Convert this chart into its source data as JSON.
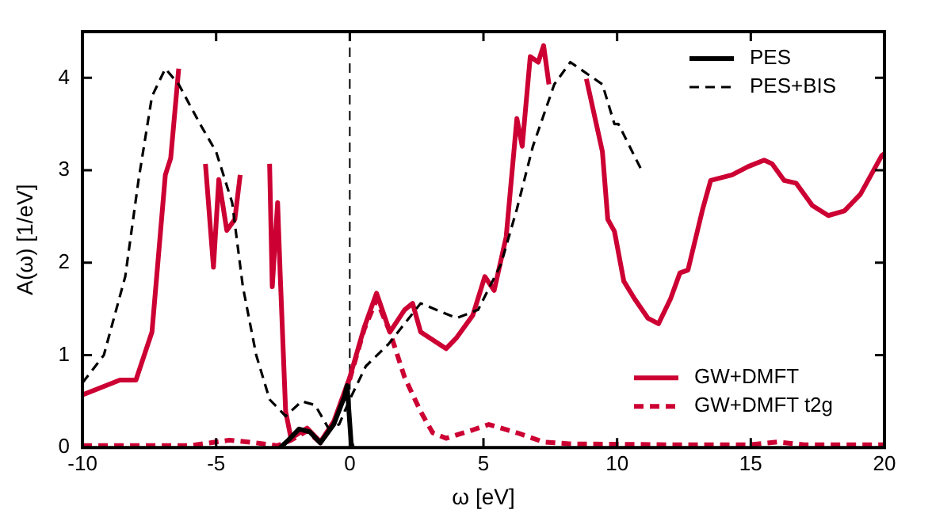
{
  "chart_data": {
    "type": "line",
    "xlabel": "ω [eV]",
    "ylabel": "A(ω) [1/eV]",
    "xlim": [
      -10,
      20
    ],
    "ylim": [
      0,
      4.5
    ],
    "xticks": [
      -10,
      -5,
      0,
      5,
      10,
      15,
      20
    ],
    "yticks": [
      0,
      1,
      2,
      3,
      4
    ],
    "legend": "right",
    "marker": "none",
    "ref_lines": [
      {
        "axis": "x",
        "value": 0,
        "color": "#000000",
        "line_style": "dashed"
      }
    ],
    "series": [
      {
        "name": "PES",
        "color": "#000000",
        "line_style": "solid",
        "x": [
          -2.6,
          -2.3,
          -1.9,
          -1.5,
          -1.1,
          -0.6,
          -0.2,
          -0.1,
          0.05,
          0.1
        ],
        "values": [
          0,
          0.08,
          0.2,
          0.17,
          0.05,
          0.25,
          0.55,
          0.67,
          0.05,
          0
        ]
      },
      {
        "name": "PES+BIS",
        "color": "#000000",
        "line_style": "dashed",
        "x": [
          -10,
          -9.2,
          -8.4,
          -7.9,
          -7.4,
          -6.9,
          -6.4,
          -5.6,
          -5.0,
          -4.4,
          -4.0,
          -3.5,
          -3.0,
          -2.4,
          -1.8,
          -1.3,
          -0.8,
          -0.4,
          0,
          0.6,
          1.45,
          2.65,
          4.0,
          4.8,
          5.65,
          6.25,
          6.85,
          7.65,
          8.25,
          9.45,
          9.9,
          10.05,
          10.95
        ],
        "values": [
          0.7,
          1.0,
          1.85,
          2.9,
          3.8,
          4.1,
          3.93,
          3.5,
          3.2,
          2.65,
          1.74,
          1.0,
          0.52,
          0.34,
          0.5,
          0.46,
          0.21,
          0.25,
          0.52,
          0.88,
          1.12,
          1.56,
          1.4,
          1.49,
          1.98,
          2.58,
          3.26,
          3.93,
          4.17,
          3.93,
          3.5,
          3.5,
          2.98
        ]
      },
      {
        "name": "GW+DMFT",
        "color": "#cc0033",
        "line_style": "solid",
        "x": [
          -10,
          -8.6,
          -8.0,
          -7.4,
          -6.9,
          -6.7,
          -6.4,
          -6.1,
          -5.6,
          -5.4,
          -5.1,
          -4.9,
          -4.6,
          -4.3,
          -4.1,
          -3.9,
          -3.5,
          -3.3,
          -3.1,
          -3.0,
          -2.9,
          -2.7,
          -2.6,
          -2.4,
          -2.2,
          -1.6,
          -1.1,
          -0.6,
          0,
          0.54,
          1.0,
          1.5,
          2.05,
          2.35,
          2.65,
          3.6,
          4.0,
          4.6,
          5.05,
          5.4,
          5.85,
          6.25,
          6.45,
          6.75,
          7.05,
          7.25,
          7.45,
          7.8,
          8.55,
          8.85,
          9.45,
          9.65,
          9.9,
          10.25,
          10.65,
          11.15,
          11.55,
          12.0,
          12.35,
          12.65,
          13.2,
          13.5,
          14.3,
          14.9,
          15.5,
          15.8,
          16.25,
          16.7,
          17.3,
          17.9,
          18.5,
          19.1,
          19.9,
          20
        ],
        "values": [
          0.57,
          0.73,
          0.73,
          1.25,
          2.95,
          3.13,
          4.1,
          null,
          null,
          3.07,
          1.95,
          2.9,
          2.35,
          2.47,
          2.95,
          null,
          null,
          null,
          null,
          3.07,
          1.74,
          2.65,
          1.85,
          0.39,
          0.1,
          0.21,
          0.06,
          0.28,
          0.76,
          1.3,
          1.67,
          1.25,
          1.49,
          1.56,
          1.25,
          1.07,
          1.19,
          1.43,
          1.85,
          1.7,
          2.28,
          3.56,
          3.26,
          4.23,
          4.17,
          4.35,
          3.93,
          null,
          null,
          3.99,
          3.2,
          2.47,
          2.34,
          1.8,
          1.61,
          1.4,
          1.34,
          1.61,
          1.89,
          1.92,
          2.58,
          2.89,
          2.95,
          3.04,
          3.11,
          3.07,
          2.89,
          2.86,
          2.62,
          2.51,
          2.56,
          2.74,
          3.16,
          3.18
        ]
      },
      {
        "name": "GW+DMFT t2g",
        "color": "#cc0033",
        "line_style": "dashed",
        "x": [
          -10,
          -6,
          -4.5,
          -3.5,
          -2.7,
          -2.2,
          -1.6,
          -1.1,
          -0.6,
          0,
          0.54,
          1.0,
          1.5,
          2.05,
          2.65,
          3.1,
          3.6,
          4.6,
          5.2,
          6.25,
          7.25,
          8.2,
          12,
          15,
          16,
          17,
          20
        ],
        "values": [
          0.02,
          0.02,
          0.08,
          0.05,
          0.02,
          0.08,
          0.18,
          0.05,
          0.26,
          0.74,
          1.28,
          1.6,
          1.25,
          0.76,
          0.39,
          0.16,
          0.1,
          0.19,
          0.25,
          0.16,
          0.06,
          0.04,
          0.03,
          0.03,
          0.06,
          0.03,
          0.03
        ]
      }
    ]
  }
}
